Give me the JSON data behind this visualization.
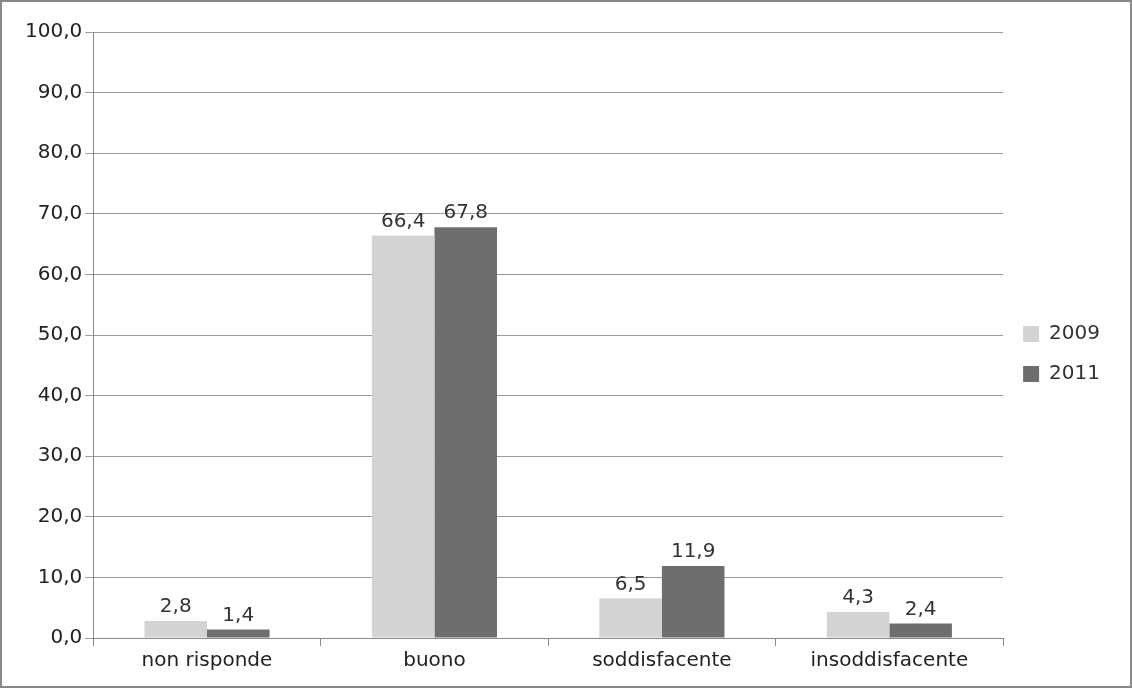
{
  "chart_data": {
    "type": "bar",
    "categories": [
      "non risponde",
      "buono",
      "soddisfacente",
      "insoddisfacente"
    ],
    "series": [
      {
        "name": "2009",
        "color": "#d3d3d3",
        "values": [
          2.8,
          66.4,
          6.5,
          4.3
        ],
        "value_labels": [
          "2,8",
          "66,4",
          "6,5",
          "4,3"
        ]
      },
      {
        "name": "2011",
        "color": "#6e6e6e",
        "values": [
          1.4,
          67.8,
          11.9,
          2.4
        ],
        "value_labels": [
          "1,4",
          "67,8",
          "11,9",
          "2,4"
        ]
      }
    ],
    "ylim": [
      0,
      100
    ],
    "yticks": [
      {
        "value": 0,
        "label": "0,0"
      },
      {
        "value": 10,
        "label": "10,0"
      },
      {
        "value": 20,
        "label": "20,0"
      },
      {
        "value": 30,
        "label": "30,0"
      },
      {
        "value": 40,
        "label": "40,0"
      },
      {
        "value": 50,
        "label": "50,0"
      },
      {
        "value": 60,
        "label": "60,0"
      },
      {
        "value": 70,
        "label": "70,0"
      },
      {
        "value": 80,
        "label": "80,0"
      },
      {
        "value": 90,
        "label": "90,0"
      },
      {
        "value": 100,
        "label": "100,0"
      }
    ],
    "grid": "y",
    "legend": "right"
  }
}
